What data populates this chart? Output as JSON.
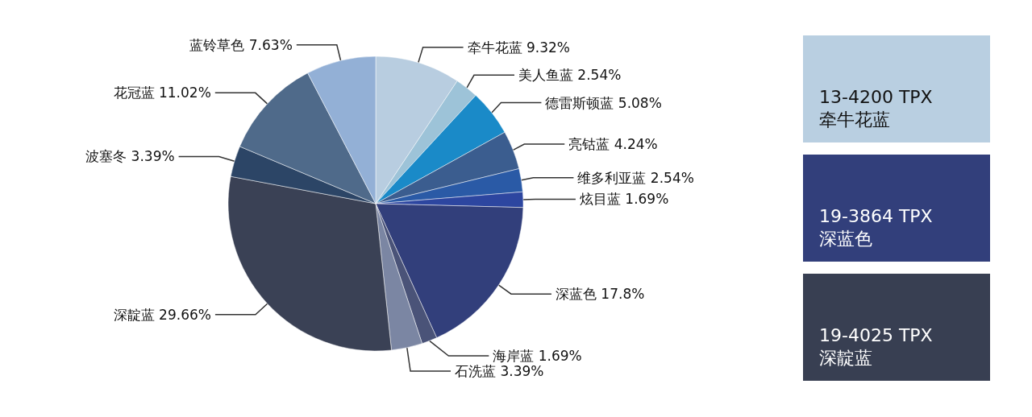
{
  "chart_data": [
    {
      "type": "pie",
      "categories": [
        "牵牛花蓝",
        "美人鱼蓝",
        "德雷斯顿蓝",
        "亮钴蓝",
        "维多利亚蓝",
        "炫目蓝",
        "深蓝色",
        "海岸蓝",
        "石洗蓝",
        "深靛蓝",
        "波塞冬",
        "花冠蓝",
        "蓝铃草色"
      ],
      "values": [
        9.32,
        2.54,
        5.08,
        4.24,
        2.54,
        1.69,
        17.8,
        1.69,
        3.39,
        29.66,
        3.39,
        11.02,
        7.63
      ],
      "value_labels": [
        "9.32%",
        "2.54%",
        "5.08%",
        "4.24%",
        "2.54%",
        "1.69%",
        "17.8%",
        "1.69%",
        "3.39%",
        "29.66%",
        "3.39%",
        "11.02%",
        "7.63%"
      ],
      "colors": [
        "#b8cde0",
        "#9dc3d8",
        "#1a8ac8",
        "#3b5d8f",
        "#2a5aa6",
        "#2d46a0",
        "#323f7b",
        "#4a5378",
        "#7b86a3",
        "#3a4155",
        "#2c4566",
        "#4f6a8a",
        "#93b0d6"
      ]
    },
    {
      "type": "other",
      "annotations": [
        "13-4200 TPX",
        "牵牛花蓝",
        "19-3864 TPX",
        "深蓝色",
        "19-4025 TPX",
        "深靛蓝"
      ],
      "colors": [
        "#b9cfe1",
        "#323f7b",
        "#383f52"
      ]
    }
  ]
}
